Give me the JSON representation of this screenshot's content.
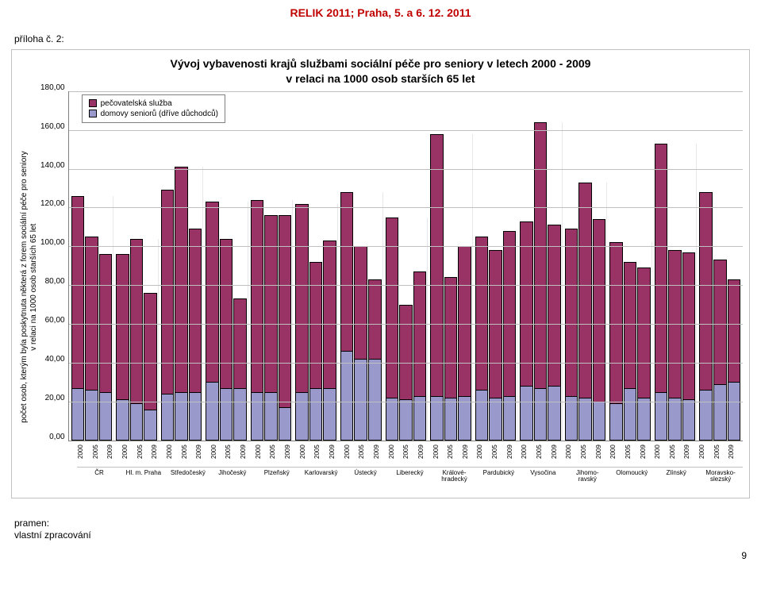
{
  "header": "RELIK 2011; Praha, 5. a 6. 12. 2011",
  "appendix": "příloha č. 2:",
  "footer_line1": "pramen:",
  "footer_line2": "vlastní zpracování",
  "page_number": "9",
  "chart": {
    "type": "stacked-bar-grouped",
    "title_line1": "Vývoj vybavenosti krajů službami sociální péče pro seniory v letech 2000 - 2009",
    "title_line2": "v relaci na 1000 osob starších 65 let",
    "yaxis_title_line1": "počet osob, kterým byla poskytnuta některá z forem sociální péče pro seniory",
    "yaxis_title_line2": "v relaci na 1000 osob starších 65 let",
    "ylim_max": 180,
    "yticks": [
      "180,00",
      "160,00",
      "140,00",
      "120,00",
      "100,00",
      "80,00",
      "60,00",
      "40,00",
      "20,00",
      "0,00"
    ],
    "years": [
      "2000",
      "2005",
      "2009"
    ],
    "legend": {
      "series1": {
        "label": "pečovatelská služba",
        "color": "#993366"
      },
      "series2": {
        "label": "domovy seniorů (dříve důchodců)",
        "color": "#9999cc"
      }
    },
    "grid_color": "#c0c0c0",
    "axis_color": "#7f7f7f",
    "bar_border": "#000000",
    "background_color": "#ffffff",
    "regions": [
      {
        "name": "ČR",
        "bars": [
          {
            "s1": 99,
            "s2": 27
          },
          {
            "s1": 79,
            "s2": 26
          },
          {
            "s1": 71,
            "s2": 25
          }
        ]
      },
      {
        "name": "Hl. m. Praha",
        "bars": [
          {
            "s1": 75,
            "s2": 21
          },
          {
            "s1": 85,
            "s2": 19
          },
          {
            "s1": 60,
            "s2": 16
          }
        ]
      },
      {
        "name": "Středočeský",
        "bars": [
          {
            "s1": 105,
            "s2": 24
          },
          {
            "s1": 116,
            "s2": 25
          },
          {
            "s1": 84,
            "s2": 25
          }
        ]
      },
      {
        "name": "Jihočeský",
        "bars": [
          {
            "s1": 93,
            "s2": 30
          },
          {
            "s1": 77,
            "s2": 27
          },
          {
            "s1": 46,
            "s2": 27
          }
        ]
      },
      {
        "name": "Plzeňský",
        "bars": [
          {
            "s1": 99,
            "s2": 25
          },
          {
            "s1": 91,
            "s2": 25
          },
          {
            "s1": 99,
            "s2": 17
          }
        ]
      },
      {
        "name": "Karlovarský",
        "bars": [
          {
            "s1": 97,
            "s2": 25
          },
          {
            "s1": 65,
            "s2": 27
          },
          {
            "s1": 76,
            "s2": 27
          }
        ]
      },
      {
        "name": "Ústecký",
        "bars": [
          {
            "s1": 82,
            "s2": 46
          },
          {
            "s1": 58,
            "s2": 42
          },
          {
            "s1": 41,
            "s2": 42
          }
        ]
      },
      {
        "name": "Liberecký",
        "bars": [
          {
            "s1": 93,
            "s2": 22
          },
          {
            "s1": 49,
            "s2": 21
          },
          {
            "s1": 64,
            "s2": 23
          }
        ]
      },
      {
        "name": "Králové- hradecký",
        "bars": [
          {
            "s1": 135,
            "s2": 23
          },
          {
            "s1": 62,
            "s2": 22
          },
          {
            "s1": 77,
            "s2": 23
          }
        ]
      },
      {
        "name": "Pardubický",
        "bars": [
          {
            "s1": 79,
            "s2": 26
          },
          {
            "s1": 76,
            "s2": 22
          },
          {
            "s1": 85,
            "s2": 23
          }
        ]
      },
      {
        "name": "Vysočina",
        "bars": [
          {
            "s1": 85,
            "s2": 28
          },
          {
            "s1": 137,
            "s2": 27
          },
          {
            "s1": 83,
            "s2": 28
          }
        ]
      },
      {
        "name": "Jihomo- ravský",
        "bars": [
          {
            "s1": 86,
            "s2": 23
          },
          {
            "s1": 111,
            "s2": 22
          },
          {
            "s1": 94,
            "s2": 20
          }
        ]
      },
      {
        "name": "Olomoucký",
        "bars": [
          {
            "s1": 83,
            "s2": 19
          },
          {
            "s1": 65,
            "s2": 27
          },
          {
            "s1": 67,
            "s2": 22
          }
        ]
      },
      {
        "name": "Zlínský",
        "bars": [
          {
            "s1": 128,
            "s2": 25
          },
          {
            "s1": 76,
            "s2": 22
          },
          {
            "s1": 76,
            "s2": 21
          }
        ]
      },
      {
        "name": "Moravsko- slezský",
        "bars": [
          {
            "s1": 102,
            "s2": 26
          },
          {
            "s1": 64,
            "s2": 29
          },
          {
            "s1": 53,
            "s2": 30
          }
        ]
      }
    ]
  }
}
